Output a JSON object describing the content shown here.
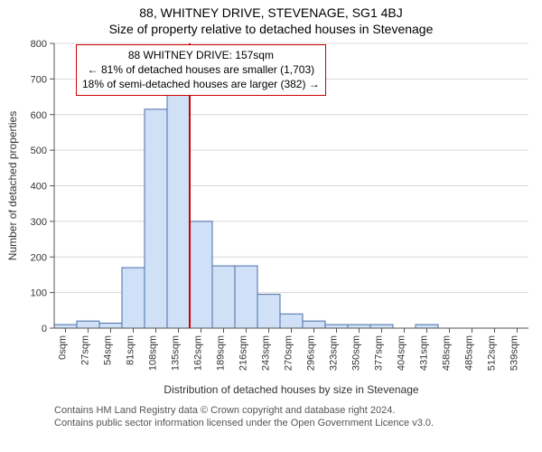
{
  "titles": {
    "address": "88, WHITNEY DRIVE, STEVENAGE, SG1 4BJ",
    "subtitle": "Size of property relative to detached houses in Stevenage"
  },
  "info_box": {
    "line1": "88 WHITNEY DRIVE: 157sqm",
    "line2": "← 81% of detached houses are smaller (1,703)",
    "line3": "18% of semi-detached houses are larger (382) →",
    "border_color": "#d00000"
  },
  "chart": {
    "type": "histogram",
    "y_label": "Number of detached properties",
    "x_label": "Distribution of detached houses by size in Stevenage",
    "ylim": [
      0,
      800
    ],
    "ytick_step": 100,
    "x_categories": [
      "0sqm",
      "27sqm",
      "54sqm",
      "81sqm",
      "108sqm",
      "135sqm",
      "162sqm",
      "189sqm",
      "216sqm",
      "243sqm",
      "270sqm",
      "296sqm",
      "323sqm",
      "350sqm",
      "377sqm",
      "404sqm",
      "431sqm",
      "458sqm",
      "485sqm",
      "512sqm",
      "539sqm"
    ],
    "values": [
      10,
      20,
      14,
      170,
      615,
      655,
      300,
      175,
      175,
      95,
      40,
      20,
      10,
      10,
      10,
      0,
      10,
      0,
      0,
      0,
      0
    ],
    "bar_fill": "#cfe0f7",
    "bar_stroke": "#4a6fa5",
    "grid_color": "#d8d8d8",
    "axis_color": "#555555",
    "tick_font_size": 11,
    "label_font_size": 12,
    "marker_line": {
      "x_index": 6,
      "color": "#d00000",
      "width": 2
    },
    "plot_background": "#ffffff"
  },
  "attribution": {
    "line1": "Contains HM Land Registry data © Crown copyright and database right 2024.",
    "line2": "Contains public sector information licensed under the Open Government Licence v3.0."
  }
}
